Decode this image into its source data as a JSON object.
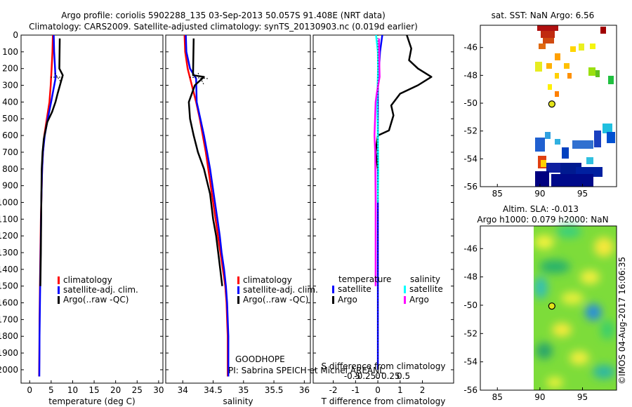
{
  "header": {
    "line1": "Argo profile: coriolis 5902288_135 03-Sep-2013 50.057S 91.408E (NRT data)",
    "line2": "Climatology: CARS2009. Satellite-adjusted climatology: synTS_20130903.nc (0.019d earlier)"
  },
  "credits": {
    "group": "GOODHOPE",
    "pi": "PI: Sabrina SPEICH et Michel AREANL",
    "stamp": "©IMOS 04-Aug-2017 16:06:35"
  },
  "colors": {
    "climatology": "#ff0000",
    "satellite": "#0000ff",
    "argo": "#000000",
    "sal_satellite": "#00ffff",
    "sal_argo": "#ff00ff"
  },
  "chart_data": [
    {
      "id": "temperature",
      "type": "line",
      "xlabel": "temperature (deg C)",
      "ylabel": "",
      "xlim": [
        -2,
        31
      ],
      "ylim": [
        2080,
        0
      ],
      "xticks": [
        0,
        5,
        10,
        15,
        20,
        25,
        30
      ],
      "yticks": [
        0,
        100,
        200,
        300,
        400,
        500,
        600,
        700,
        800,
        900,
        1000,
        1100,
        1200,
        1300,
        1400,
        1500,
        1600,
        1700,
        1800,
        1900,
        2000
      ],
      "legend": [
        "climatology",
        "satellite-adj. clim.",
        "Argo(..raw -QC)"
      ],
      "series": [
        {
          "name": "climatology",
          "color": "#ff0000",
          "points": [
            [
              5.4,
              0
            ],
            [
              5.3,
              100
            ],
            [
              5.1,
              200
            ],
            [
              4.9,
              300
            ],
            [
              4.6,
              400
            ],
            [
              4.0,
              500
            ],
            [
              3.4,
              600
            ],
            [
              3.1,
              700
            ],
            [
              2.9,
              800
            ],
            [
              2.8,
              900
            ],
            [
              2.7,
              1000
            ],
            [
              2.6,
              1100
            ],
            [
              2.55,
              1200
            ],
            [
              2.5,
              1300
            ],
            [
              2.45,
              1400
            ],
            [
              2.4,
              1500
            ],
            [
              2.35,
              1600
            ],
            [
              2.3,
              1700
            ],
            [
              2.28,
              1800
            ],
            [
              2.25,
              1900
            ],
            [
              2.2,
              2040
            ]
          ]
        },
        {
          "name": "satellite-adj. clim.",
          "color": "#0000ff",
          "points": [
            [
              5.6,
              0
            ],
            [
              5.7,
              100
            ],
            [
              5.9,
              200
            ],
            [
              6.0,
              260
            ],
            [
              5.0,
              400
            ],
            [
              4.2,
              500
            ],
            [
              3.5,
              600
            ],
            [
              3.1,
              700
            ],
            [
              2.9,
              800
            ],
            [
              2.8,
              900
            ],
            [
              2.7,
              1000
            ],
            [
              2.65,
              1100
            ],
            [
              2.6,
              1200
            ],
            [
              2.55,
              1300
            ],
            [
              2.5,
              1400
            ],
            [
              2.45,
              1500
            ],
            [
              2.4,
              1600
            ],
            [
              2.35,
              1700
            ],
            [
              2.3,
              1800
            ],
            [
              2.28,
              1900
            ],
            [
              2.25,
              2040
            ]
          ]
        },
        {
          "name": "Argo(..raw -QC)",
          "color": "#000000",
          "points": [
            [
              7.0,
              20
            ],
            [
              6.9,
              200
            ],
            [
              7.7,
              240
            ],
            [
              6.5,
              350
            ],
            [
              6.0,
              400
            ],
            [
              5.2,
              460
            ],
            [
              4.1,
              520
            ],
            [
              3.3,
              620
            ],
            [
              3.0,
              700
            ],
            [
              2.8,
              800
            ],
            [
              2.7,
              1000
            ],
            [
              2.6,
              1300
            ],
            [
              2.5,
              1500
            ]
          ]
        }
      ]
    },
    {
      "id": "salinity",
      "type": "line",
      "xlabel": "salinity",
      "ylabel": "",
      "xlim": [
        33.72,
        36.1
      ],
      "ylim": [
        2080,
        0
      ],
      "xticks": [
        34,
        34.5,
        35,
        35.5,
        36
      ],
      "xticklabels": [
        "34",
        "34.5",
        "35",
        "35.5",
        "36"
      ],
      "legend": [
        "climatology",
        "satellite-adj. clim.",
        "Argo(..raw -QC)"
      ],
      "series": [
        {
          "name": "climatology",
          "color": "#ff0000",
          "points": [
            [
              34.03,
              0
            ],
            [
              34.04,
              100
            ],
            [
              34.08,
              200
            ],
            [
              34.15,
              300
            ],
            [
              34.22,
              400
            ],
            [
              34.28,
              500
            ],
            [
              34.33,
              600
            ],
            [
              34.38,
              700
            ],
            [
              34.42,
              800
            ],
            [
              34.46,
              900
            ],
            [
              34.5,
              1000
            ],
            [
              34.54,
              1100
            ],
            [
              34.58,
              1200
            ],
            [
              34.62,
              1300
            ],
            [
              34.66,
              1400
            ],
            [
              34.7,
              1500
            ],
            [
              34.72,
              1600
            ],
            [
              34.73,
              1700
            ],
            [
              34.74,
              1800
            ],
            [
              34.74,
              1900
            ],
            [
              34.74,
              2040
            ]
          ]
        },
        {
          "name": "satellite-adj. clim.",
          "color": "#0000ff",
          "points": [
            [
              34.05,
              0
            ],
            [
              34.06,
              100
            ],
            [
              34.12,
              200
            ],
            [
              34.22,
              260
            ],
            [
              34.23,
              400
            ],
            [
              34.29,
              500
            ],
            [
              34.35,
              600
            ],
            [
              34.4,
              700
            ],
            [
              34.45,
              800
            ],
            [
              34.49,
              900
            ],
            [
              34.53,
              1000
            ],
            [
              34.57,
              1100
            ],
            [
              34.61,
              1200
            ],
            [
              34.64,
              1300
            ],
            [
              34.68,
              1400
            ],
            [
              34.71,
              1500
            ],
            [
              34.73,
              1600
            ],
            [
              34.74,
              1700
            ],
            [
              34.75,
              1800
            ],
            [
              34.75,
              1900
            ],
            [
              34.75,
              2040
            ]
          ]
        },
        {
          "name": "Argo(..raw -QC)",
          "color": "#000000",
          "points": [
            [
              34.18,
              20
            ],
            [
              34.17,
              240
            ],
            [
              34.35,
              250
            ],
            [
              34.2,
              300
            ],
            [
              34.1,
              400
            ],
            [
              34.12,
              500
            ],
            [
              34.18,
              600
            ],
            [
              34.25,
              700
            ],
            [
              34.35,
              800
            ],
            [
              34.45,
              950
            ],
            [
              34.5,
              1100
            ],
            [
              34.55,
              1200
            ],
            [
              34.6,
              1350
            ],
            [
              34.65,
              1500
            ]
          ]
        }
      ]
    },
    {
      "id": "difference",
      "type": "line",
      "xlabel": "T difference from climatology",
      "xlabel_top": "S difference from climatology",
      "xlim": [
        -2.9,
        3.4
      ],
      "ylim": [
        2080,
        0
      ],
      "xticks": [
        -2,
        -1,
        0,
        1,
        2
      ],
      "xticks_top": [
        -0.5,
        -0.25,
        0,
        0.25,
        0.5
      ],
      "xticks_top_labels": [
        "-0.5",
        "-0.25",
        "0",
        "0.25",
        "0.5"
      ],
      "legend_headers": [
        "temperature",
        "salinity"
      ],
      "legend": [
        "satellite",
        "Argo",
        "satellite",
        "Argo"
      ],
      "series": [
        {
          "name": "T satellite",
          "color": "#0000ff",
          "points": [
            [
              0.2,
              0
            ],
            [
              0.1,
              100
            ],
            [
              0.05,
              200
            ],
            [
              0,
              300
            ],
            [
              0,
              500
            ],
            [
              0,
              1000
            ],
            [
              0,
              2000
            ]
          ]
        },
        {
          "name": "T Argo",
          "color": "#000000",
          "points": [
            [
              1.3,
              0
            ],
            [
              1.5,
              80
            ],
            [
              1.4,
              150
            ],
            [
              1.8,
              200
            ],
            [
              2.4,
              250
            ],
            [
              1.8,
              300
            ],
            [
              1.0,
              350
            ],
            [
              0.6,
              420
            ],
            [
              0.7,
              480
            ],
            [
              0.5,
              570
            ],
            [
              0.0,
              600
            ],
            [
              -0.1,
              700
            ],
            [
              0,
              800
            ]
          ]
        },
        {
          "name": "S satellite",
          "color": "#00ffff",
          "points": [
            [
              -0.08,
              0
            ],
            [
              0.0,
              100
            ],
            [
              0.01,
              200
            ],
            [
              -0.03,
              400
            ],
            [
              0.0,
              600
            ],
            [
              0.02,
              800
            ],
            [
              0,
              1000
            ]
          ]
        },
        {
          "name": "S Argo",
          "color": "#ff00ff",
          "points": [
            [
              0.05,
              20
            ],
            [
              0.07,
              200
            ],
            [
              0.08,
              250
            ],
            [
              -0.05,
              350
            ],
            [
              -0.1,
              400
            ],
            [
              -0.15,
              600
            ],
            [
              -0.12,
              700
            ],
            [
              -0.1,
              1000
            ],
            [
              -0.1,
              1500
            ]
          ]
        }
      ]
    },
    {
      "id": "sst-map",
      "type": "heatmap",
      "title": "sat. SST: NaN Argo: 6.56",
      "xlim": [
        83,
        99
      ],
      "ylim": [
        -56,
        -44.4
      ],
      "xticks": [
        85,
        90,
        95
      ],
      "yticks": [
        -46,
        -48,
        -50,
        -52,
        -54,
        -56
      ],
      "profile_location": [
        91.4,
        -50.06
      ]
    },
    {
      "id": "sla-map",
      "type": "heatmap",
      "title": "Altim. SLA: -0.013",
      "subtitle": "Argo h1000: 0.079 h2000: NaN",
      "xlim": [
        83,
        99
      ],
      "ylim": [
        -56,
        -44.4
      ],
      "xticks": [
        85,
        90,
        95
      ],
      "yticks": [
        -46,
        -48,
        -50,
        -52,
        -54,
        -56
      ],
      "profile_location": [
        91.4,
        -50.06
      ]
    }
  ]
}
